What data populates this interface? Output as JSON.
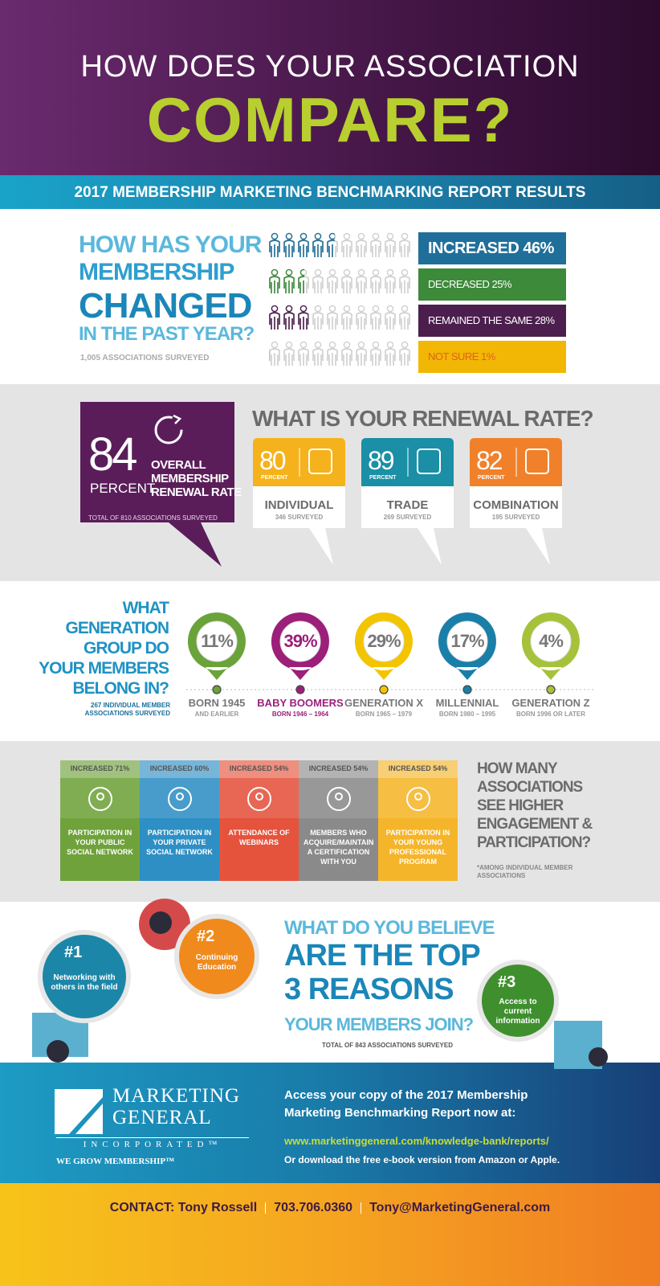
{
  "header": {
    "line1": "HOW DOES YOUR ASSOCIATION",
    "line2": "COMPARE?"
  },
  "banner": "2017 MEMBERSHIP MARKETING BENCHMARKING REPORT RESULTS",
  "membership": {
    "question": [
      "HOW HAS YOUR",
      "MEMBERSHIP",
      "CHANGED",
      "IN THE PAST YEAR?"
    ],
    "note": "1,005 ASSOCIATIONS SURVEYED",
    "results": [
      {
        "label": "INCREASED 46%",
        "color": "#1f6f9a"
      },
      {
        "label": "DECREASED 25%",
        "color": "#3d8a3a"
      },
      {
        "label": "REMAINED THE SAME 28%",
        "color": "#4b1e4d"
      },
      {
        "label": "NOT SURE 1%",
        "color": "#f2b705"
      }
    ]
  },
  "renewal": {
    "overall": {
      "value": "84",
      "unit": "PERCENT",
      "label": [
        "OVERALL",
        "MEMBERSHIP",
        "RENEWAL RATE"
      ],
      "note": "TOTAL OF 810 ASSOCIATIONS SURVEYED"
    },
    "title": "WHAT IS YOUR RENEWAL RATE?",
    "cards": [
      {
        "value": "80",
        "unit": "PERCENT",
        "label": "INDIVIDUAL",
        "note": "346 SURVEYED",
        "color": "#f5b21c"
      },
      {
        "value": "89",
        "unit": "PERCENT",
        "label": "TRADE",
        "note": "269 SURVEYED",
        "color": "#1a8fa6"
      },
      {
        "value": "82",
        "unit": "PERCENT",
        "label": "COMBINATION",
        "note": "195 SURVEYED",
        "color": "#f0812a"
      }
    ]
  },
  "generation": {
    "question": [
      "WHAT",
      "GENERATION",
      "GROUP DO",
      "YOUR MEMBERS",
      "BELONG IN?"
    ],
    "note": "267 INDIVIDUAL MEMBER ASSOCIATIONS SURVEYED",
    "items": [
      {
        "value": "11%",
        "name": "BORN 1945",
        "sub": "AND EARLIER",
        "color": "#6aa33a"
      },
      {
        "value": "39%",
        "name": "BABY BOOMERS",
        "sub": "BORN 1946 – 1964",
        "color": "#9c1f7a"
      },
      {
        "value": "29%",
        "name": "GENERATION X",
        "sub": "BORN 1965 – 1979",
        "color": "#f2c500"
      },
      {
        "value": "17%",
        "name": "MILLENNIAL",
        "sub": "BORN 1980 – 1995",
        "color": "#1a7fa8"
      },
      {
        "value": "4%",
        "name": "GENERATION Z",
        "sub": "BORN 1996 OR LATER",
        "color": "#a6c23a"
      }
    ]
  },
  "engagement": {
    "cards": [
      {
        "stat": "INCREASED 71%",
        "label": "PARTICIPATION IN YOUR PUBLIC SOCIAL NETWORK",
        "color": "#6fa23b"
      },
      {
        "stat": "INCREASED 60%",
        "label": "PARTICIPATION IN YOUR PRIVATE SOCIAL NETWORK",
        "color": "#2e8fc4"
      },
      {
        "stat": "INCREASED 54%",
        "label": "ATTENDANCE OF WEBINARS",
        "color": "#e5533d"
      },
      {
        "stat": "INCREASED 54%",
        "label": "MEMBERS WHO ACQUIRE/MAINTAIN A CERTIFICATION WITH YOU",
        "color": "#8a8a8a"
      },
      {
        "stat": "INCREASED 54%",
        "label": "PARTICIPATION IN YOUR YOUNG PROFESSIONAL PROGRAM",
        "color": "#f5b52a"
      }
    ],
    "question": [
      "HOW MANY",
      "ASSOCIATIONS",
      "SEE HIGHER",
      "ENGAGEMENT &",
      "PARTICIPATION?"
    ],
    "note": "*AMONG INDIVIDUAL MEMBER ASSOCIATIONS"
  },
  "reasons": {
    "question": [
      "WHAT DO YOU BELIEVE",
      "ARE THE TOP",
      "3 REASONS",
      "YOUR MEMBERS JOIN?"
    ],
    "note": "TOTAL OF 843 ASSOCIATIONS SURVEYED",
    "items": [
      {
        "rank": "#1",
        "label": "Networking with others in the field",
        "color": "#1c86a8"
      },
      {
        "rank": "#2",
        "label": "Continuing Education",
        "color": "#f08a1c"
      },
      {
        "rank": "#3",
        "label": "Access to current information",
        "color": "#3f8f2f"
      }
    ]
  },
  "footer": {
    "logo": {
      "line1": "MARKETING",
      "line2": "GENERAL",
      "line3": "INCORPORATED™",
      "tagline": "WE GROW MEMBERSHIP™"
    },
    "cta": [
      "Access your copy of the 2017 Membership",
      "Marketing Benchmarking Report now at:"
    ],
    "url": "www.marketinggeneral.com/knowledge-bank/reports/",
    "download": "Or download the free e-book version from Amazon or Apple."
  },
  "contact": {
    "name": "CONTACT: Tony Rossell",
    "phone": "703.706.0360",
    "email": "Tony@MarketingGeneral.com"
  }
}
